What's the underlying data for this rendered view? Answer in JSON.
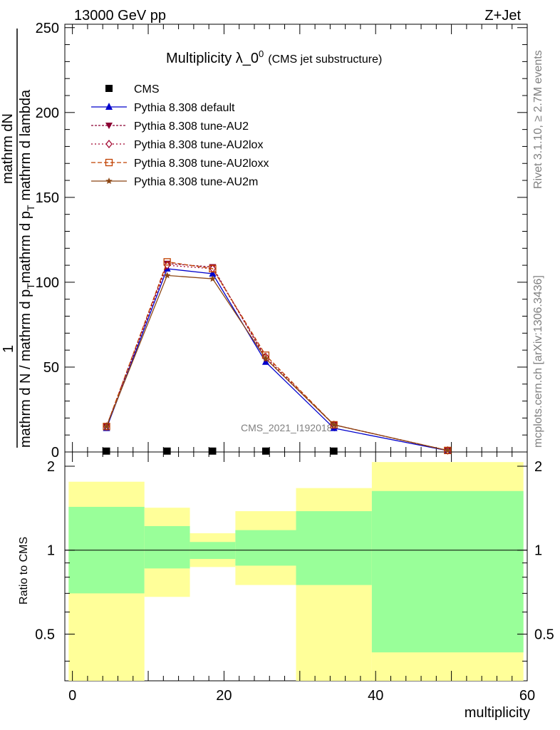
{
  "header": {
    "left": "13000 GeV pp",
    "right": "Z+Jet"
  },
  "side": {
    "top": "Rivet 3.1.10, ≥ 2.7M events",
    "bottom": "mcplots.cern.ch [arXiv:1306.3436]"
  },
  "title": {
    "main": "Multiplicity λ_0",
    "sup": "0",
    "sub": "(CMS jet substructure)"
  },
  "watermark": "CMS_2021_I1920187",
  "ylabel_top": {
    "frac_num": "1",
    "d1": "mathrm dN / mathrm d p",
    "d1_sub": "T",
    "d2": "mathrm d lambda",
    "mid": "mathrm d",
    "num2": "N",
    "sub2": "T"
  },
  "ylabel": {
    "pre": "mathrm d N / mathrm d p",
    "pre_sub": "T",
    "mid": "mathrm d p",
    "mid_sub": "T",
    "post": "mathrm d lambda",
    "top": "mathrm dN",
    "one": "1"
  },
  "ratio_ylabel": "Ratio to CMS",
  "xlabel": "multiplicity",
  "colors": {
    "default": "#0000cc",
    "au2": "#8b0033",
    "au2lox": "#a0002a",
    "au2loxx": "#c04000",
    "au2m": "#8b4513",
    "band_inner": "#99ff99",
    "band_outer": "#ffff99"
  },
  "chart_data": {
    "type": "line",
    "main": {
      "xlim": [
        -1,
        60
      ],
      "ylim": [
        0,
        252
      ],
      "yticks": [
        0,
        50,
        100,
        150,
        200,
        250
      ],
      "legend": [
        {
          "name": "CMS",
          "marker": "square",
          "color": "#000000"
        },
        {
          "name": "Pythia 8.308 default",
          "marker": "triangle",
          "color": "#0000cc",
          "dash": ""
        },
        {
          "name": "Pythia 8.308 tune-AU2",
          "marker": "tri-down",
          "color": "#8b0033",
          "dash": "3,2"
        },
        {
          "name": "Pythia 8.308 tune-AU2lox",
          "marker": "diamond",
          "color": "#a0002a",
          "dash": "2,3"
        },
        {
          "name": "Pythia 8.308 tune-AU2loxx",
          "marker": "square-open",
          "color": "#c04000",
          "dash": "6,3"
        },
        {
          "name": "Pythia 8.308 tune-AU2m",
          "marker": "star",
          "color": "#8b4513",
          "dash": ""
        }
      ],
      "x": [
        4.5,
        12.5,
        18.5,
        25.5,
        34.5,
        49.5
      ],
      "cms": [
        0.1,
        0.1,
        0.1,
        0.1,
        0.1,
        0.1
      ],
      "series": [
        {
          "name": "Pythia 8.308 default",
          "values": [
            14,
            108,
            105,
            53,
            14,
            0.8
          ]
        },
        {
          "name": "Pythia 8.308 tune-AU2",
          "values": [
            15,
            111,
            109,
            55,
            16,
            0.9
          ]
        },
        {
          "name": "Pythia 8.308 tune-AU2lox",
          "values": [
            15,
            110,
            108,
            56,
            16,
            0.9
          ]
        },
        {
          "name": "Pythia 8.308 tune-AU2loxx",
          "values": [
            15,
            112,
            108,
            57,
            16,
            0.9
          ]
        },
        {
          "name": "Pythia 8.308 tune-AU2m",
          "values": [
            15,
            104,
            102,
            55,
            16,
            0.9
          ]
        }
      ]
    },
    "ratio": {
      "xlim": [
        -1,
        60
      ],
      "ylim": [
        0.34,
        2.25
      ],
      "yticks": [
        0.5,
        1,
        2
      ],
      "xticks": [
        0,
        20,
        40,
        60
      ],
      "bins": [
        {
          "lo": -0.5,
          "hi": 9.5,
          "inner": [
            0.7,
            1.43
          ],
          "outer": [
            0.34,
            1.76
          ]
        },
        {
          "lo": 9.5,
          "hi": 15.5,
          "inner": [
            0.86,
            1.22
          ],
          "outer": [
            0.68,
            1.42
          ]
        },
        {
          "lo": 15.5,
          "hi": 21.5,
          "inner": [
            0.93,
            1.07
          ],
          "outer": [
            0.87,
            1.15
          ]
        },
        {
          "lo": 21.5,
          "hi": 29.5,
          "inner": [
            0.88,
            1.18
          ],
          "outer": [
            0.75,
            1.38
          ]
        },
        {
          "lo": 29.5,
          "hi": 39.5,
          "inner": [
            0.75,
            1.38
          ],
          "outer": [
            0.34,
            1.67
          ]
        },
        {
          "lo": 39.5,
          "hi": 59.5,
          "inner": [
            0.43,
            1.63
          ],
          "outer": [
            0.34,
            2.07
          ]
        }
      ]
    }
  }
}
